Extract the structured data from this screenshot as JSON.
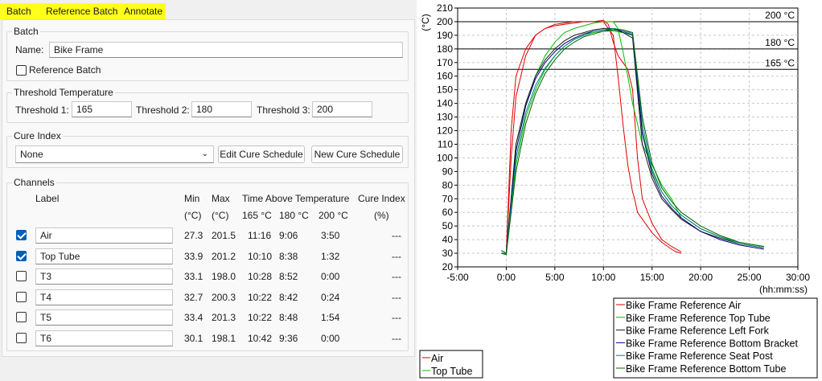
{
  "tabs": [
    "Batch",
    "Reference Batch",
    "Annotate"
  ],
  "batch": {
    "group": "Batch",
    "name_label": "Name:",
    "name_value": "Bike Frame",
    "reference_label": "Reference Batch",
    "reference_checked": false
  },
  "threshold": {
    "group": "Threshold Temperature",
    "t1_label": "Threshold 1:",
    "t1": "165",
    "t2_label": "Threshold 2:",
    "t2": "180",
    "t3_label": "Threshold 3:",
    "t3": "200"
  },
  "cure": {
    "group": "Cure Index",
    "selected": "None",
    "edit_label": "Edit Cure Schedule",
    "new_label": "New Cure Schedule"
  },
  "channels": {
    "group": "Channels",
    "headers": {
      "label": "Label",
      "min": "Min",
      "max": "Max",
      "tat": "Time Above Temperature",
      "cure": "Cure Index",
      "min_unit": "(°C)",
      "max_unit": "(°C)",
      "t165": "165 °C",
      "t180": "180 °C",
      "t200": "200 °C",
      "cure_unit": "(%)"
    },
    "rows": [
      {
        "checked": true,
        "label": "Air",
        "min": "27.3",
        "max": "201.5",
        "t165": "11:16",
        "t180": "9:06",
        "t200": "3:50",
        "cure": "---"
      },
      {
        "checked": true,
        "label": "Top Tube",
        "min": "33.9",
        "max": "201.2",
        "t165": "10:10",
        "t180": "8:38",
        "t200": "1:32",
        "cure": "---"
      },
      {
        "checked": false,
        "label": "T3",
        "min": "33.1",
        "max": "198.0",
        "t165": "10:28",
        "t180": "8:52",
        "t200": "0:00",
        "cure": "---"
      },
      {
        "checked": false,
        "label": "T4",
        "min": "32.7",
        "max": "200.3",
        "t165": "10:22",
        "t180": "8:42",
        "t200": "0:24",
        "cure": "---"
      },
      {
        "checked": false,
        "label": "T5",
        "min": "33.4",
        "max": "201.3",
        "t165": "10:22",
        "t180": "8:48",
        "t200": "1:54",
        "cure": "---"
      },
      {
        "checked": false,
        "label": "T6",
        "min": "30.1",
        "max": "198.1",
        "t165": "10:42",
        "t180": "9:36",
        "t200": "0:00",
        "cure": "---"
      }
    ]
  },
  "colors": {
    "red": "#e00000",
    "green": "#00c000",
    "dark": "#1a1a1a",
    "navy": "#000080",
    "teal": "#008080",
    "darkgreen": "#006000",
    "threshold": "#000000"
  },
  "chart_data": {
    "type": "line",
    "ylabel": "(°C)",
    "xlabel": "(hh:mm:ss)",
    "xlim": [
      -5,
      30
    ],
    "ylim": [
      20,
      210
    ],
    "xticks": [
      -5,
      0,
      5,
      10,
      15,
      20,
      25,
      30
    ],
    "xtick_labels": [
      "-5:00",
      "0:00",
      "5:00",
      "10:00",
      "15:00",
      "20:00",
      "25:00",
      "30:00"
    ],
    "yticks": [
      20,
      30,
      40,
      50,
      60,
      70,
      80,
      90,
      100,
      110,
      120,
      130,
      140,
      150,
      160,
      170,
      180,
      190,
      200,
      210
    ],
    "grid": true,
    "thresholds": [
      {
        "value": 200,
        "label": "200 °C"
      },
      {
        "value": 180,
        "label": "180 °C"
      },
      {
        "value": 165,
        "label": "165 °C"
      }
    ],
    "series": [
      {
        "name": "Air",
        "color": "#e00000",
        "x": [
          -0.5,
          0,
          0.5,
          1,
          2,
          3,
          4,
          5,
          6,
          7,
          8,
          9,
          10,
          10.5,
          11,
          11.5,
          12,
          12.5,
          13,
          13.5,
          14,
          15,
          16,
          17,
          18
        ],
        "y": [
          30,
          29,
          120,
          160,
          180,
          190,
          195,
          198,
          199,
          200,
          200,
          200,
          201,
          198,
          185,
          175,
          170,
          165,
          150,
          100,
          70,
          52,
          40,
          35,
          31
        ]
      },
      {
        "name": "Top Tube",
        "color": "#00c000",
        "x": [
          -0.5,
          0,
          1,
          2,
          3,
          4,
          5,
          6,
          7,
          8,
          9,
          10,
          10.5,
          11,
          11.5,
          12,
          12.5,
          13,
          14,
          15,
          16,
          17,
          18
        ],
        "y": [
          30,
          30,
          110,
          140,
          160,
          175,
          185,
          192,
          195,
          197,
          199,
          200,
          200,
          200,
          195,
          178,
          160,
          140,
          110,
          95,
          80,
          70,
          56
        ]
      },
      {
        "name": "Bike Frame Reference Air",
        "color": "#e00000",
        "x": [
          -0.5,
          0,
          0.5,
          1,
          2,
          3,
          4,
          5,
          6,
          7,
          8,
          9,
          10,
          11,
          11.5,
          12,
          12.5,
          13,
          13.2,
          13.5,
          14,
          15,
          16,
          17,
          17.5,
          18
        ],
        "y": [
          30,
          30,
          100,
          145,
          175,
          190,
          195,
          197,
          198,
          199,
          200,
          200,
          200,
          190,
          160,
          125,
          95,
          75,
          70,
          60,
          55,
          45,
          38,
          33,
          31,
          30
        ]
      },
      {
        "name": "Bike Frame Reference Top Tube",
        "color": "#00c000",
        "x": [
          -0.5,
          0,
          1,
          2,
          3,
          4,
          5,
          6,
          7,
          8,
          9,
          10,
          11,
          12,
          13,
          14,
          15,
          16,
          17,
          18,
          20,
          22,
          24,
          26.5
        ],
        "y": [
          30,
          30,
          95,
          130,
          150,
          165,
          175,
          182,
          187,
          190,
          192,
          193,
          193,
          192,
          190,
          120,
          90,
          75,
          65,
          58,
          48,
          42,
          38,
          35
        ]
      },
      {
        "name": "Bike Frame Reference Left Fork",
        "color": "#1a1a1a",
        "x": [
          -0.5,
          0,
          1,
          2,
          3,
          4,
          5,
          6,
          7,
          8,
          9,
          10,
          11,
          12,
          13,
          14,
          15,
          16,
          17,
          18,
          20,
          22,
          24,
          26.5
        ],
        "y": [
          32,
          30,
          110,
          140,
          160,
          172,
          180,
          186,
          190,
          192,
          194,
          195,
          195,
          192,
          188,
          110,
          85,
          70,
          62,
          55,
          46,
          41,
          37,
          34
        ]
      },
      {
        "name": "Bike Frame Reference Bottom Bracket",
        "color": "#000080",
        "x": [
          -0.5,
          0,
          1,
          2,
          3,
          4,
          5,
          6,
          7,
          8,
          9,
          10,
          11,
          12,
          13,
          14,
          15,
          16,
          17,
          18,
          20,
          22,
          24,
          26.5
        ],
        "y": [
          32,
          30,
          105,
          138,
          158,
          170,
          178,
          184,
          188,
          191,
          193,
          194,
          194,
          193,
          190,
          118,
          88,
          72,
          63,
          56,
          46,
          40,
          36,
          33
        ]
      },
      {
        "name": "Bike Frame Reference Seat Post",
        "color": "#008080",
        "x": [
          -0.5,
          0,
          1,
          2,
          3,
          4,
          5,
          6,
          7,
          8,
          9,
          10,
          11,
          12,
          13,
          14,
          15,
          16,
          17,
          18,
          20,
          22,
          24,
          26.5
        ],
        "y": [
          32,
          30,
          100,
          133,
          153,
          166,
          175,
          182,
          187,
          190,
          193,
          194,
          195,
          194,
          191,
          125,
          92,
          75,
          65,
          58,
          48,
          42,
          37,
          34
        ]
      },
      {
        "name": "Bike Frame Reference Bottom Tube",
        "color": "#006000",
        "x": [
          -0.5,
          0,
          1,
          2,
          3,
          4,
          5,
          6,
          7,
          8,
          9,
          10,
          11,
          12,
          13,
          14,
          15,
          16,
          17,
          18,
          20,
          22,
          24,
          26.5
        ],
        "y": [
          30,
          29,
          90,
          125,
          147,
          162,
          172,
          180,
          185,
          189,
          191,
          193,
          194,
          194,
          192,
          130,
          96,
          78,
          68,
          60,
          50,
          43,
          38,
          35
        ]
      }
    ],
    "legend_main": [
      "Bike Frame Reference Air",
      "Bike Frame Reference Top Tube",
      "Bike Frame Reference Left Fork",
      "Bike Frame Reference Bottom Bracket",
      "Bike Frame Reference Seat Post",
      "Bike Frame Reference Bottom Tube"
    ],
    "legend_channels": [
      "Air",
      "Top Tube"
    ],
    "legend_placement": "bottom-right"
  }
}
